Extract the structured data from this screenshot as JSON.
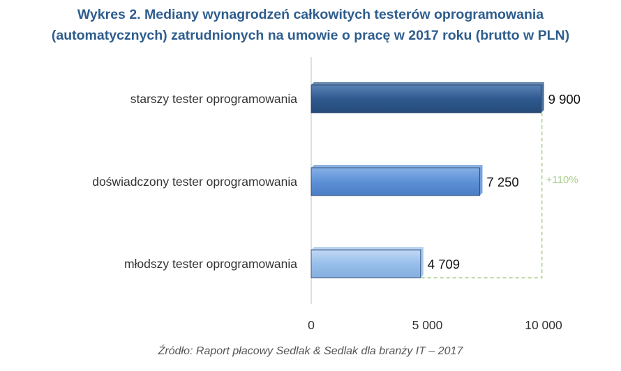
{
  "title_lines": [
    "Wykres 2. Mediany wynagrodzeń całkowitych testerów oprogramowania",
    "(automatycznych) zatrudnionych na umowie o pracę w 2017 roku (brutto w PLN)"
  ],
  "source": "Źródło: Raport płacowy Sedlak & Sedlak dla branży IT – 2017",
  "colors": {
    "title": "#2e5d8e",
    "bar_dark": "#2f5a8f",
    "bar_mid": "#5d91d6",
    "bar_light": "#98bfea",
    "bracket": "#a9cf8a",
    "axis": "#bfbfbf"
  },
  "chart_data": {
    "type": "bar",
    "orientation": "horizontal",
    "categories": [
      "starszy tester oprogramowania",
      "doświadczony tester oprogramowania",
      "młodszy tester oprogramowania"
    ],
    "values": [
      9900,
      7250,
      4709
    ],
    "value_labels": [
      "9 900",
      "7 250",
      "4 709"
    ],
    "bar_colors": [
      "#2f5a8f",
      "#5d91d6",
      "#98bfea"
    ],
    "xlim": [
      0,
      10000
    ],
    "xticks": [
      0,
      5000,
      10000
    ],
    "xtick_labels": [
      "0",
      "5 000",
      "10 000"
    ],
    "annotation": {
      "text": "+110%",
      "from_category": "młodszy tester oprogramowania",
      "to_category": "starszy tester oprogramowania"
    },
    "grid": false,
    "legend": "none"
  }
}
